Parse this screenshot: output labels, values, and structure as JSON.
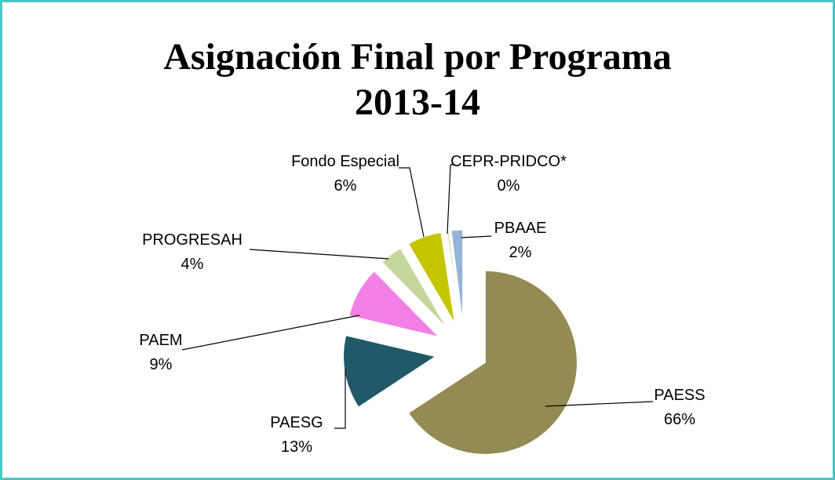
{
  "chart_data": {
    "type": "pie",
    "title": "Asignación Final por Programa",
    "subtitle": "2013-14",
    "categories": [
      "PAESS",
      "PAESG",
      "PAEM",
      "PROGRESAH",
      "Fondo Especial",
      "CEPR-PRIDCO*",
      "PBAAE"
    ],
    "values": [
      66,
      13,
      9,
      4,
      6,
      0.4,
      2
    ],
    "value_labels": [
      "66%",
      "13%",
      "9%",
      "4%",
      "6%",
      "0%",
      "2%"
    ],
    "colors": [
      "#948a54",
      "#215968",
      "#f27fe6",
      "#c4d79b",
      "#c5c400",
      "#dde8c0",
      "#95b3d7"
    ]
  }
}
